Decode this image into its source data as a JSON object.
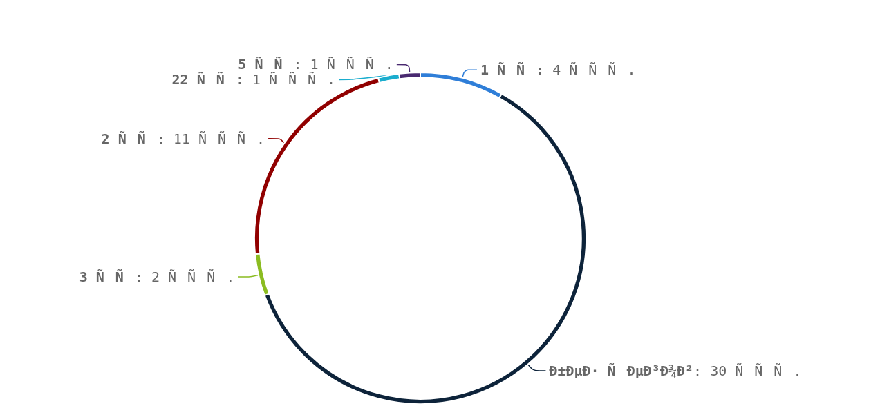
{
  "chart_data": {
    "type": "donut",
    "categories": [
      "1 ÑÑ",
      "Ð±ÐµÐ· ÑÐµÐ³Ð¾Ð²",
      "3 ÑÑ",
      "2 ÑÑ",
      "22 ÑÑ",
      "5 ÑÑ"
    ],
    "values": [
      4,
      30,
      2,
      11,
      1,
      1
    ],
    "value_labels": [
      ": 4 ÑÑÑ.",
      ": 30 ÑÑÑ.",
      ": 2 ÑÑÑ.",
      ": 11 ÑÑÑ.",
      ": 1 ÑÑÑ.",
      ": 1 ÑÑÑ."
    ],
    "colors": [
      "#2f7ed8",
      "#0d233a",
      "#8bbc21",
      "#910000",
      "#1aadce",
      "#492970"
    ],
    "legend": false
  }
}
